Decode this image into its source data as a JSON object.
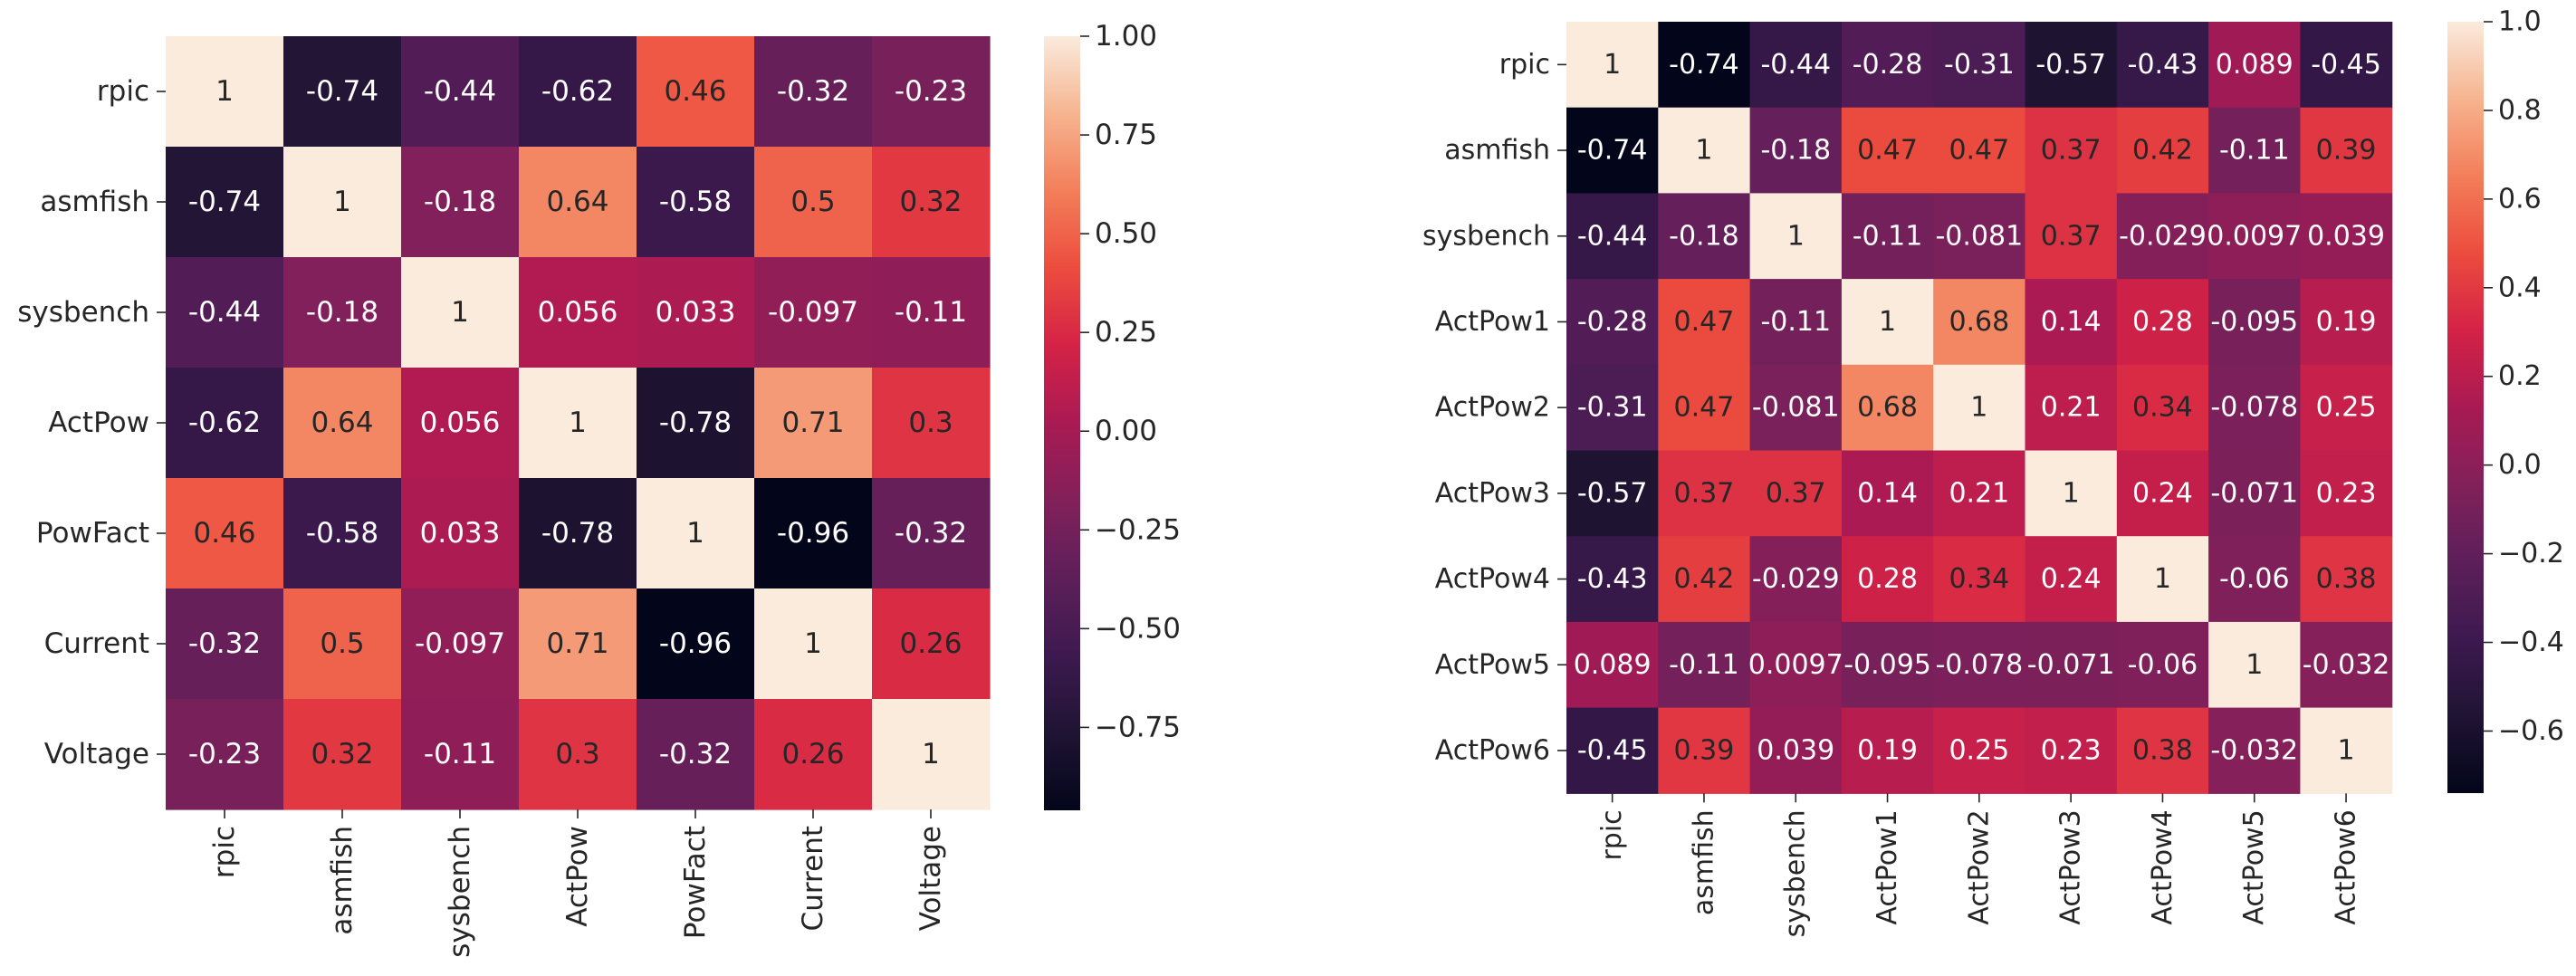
{
  "chart_data": [
    {
      "type": "heatmap",
      "labels": [
        "rpic",
        "asmfish",
        "sysbench",
        "ActPow",
        "PowFact",
        "Current",
        "Voltage"
      ],
      "values": [
        [
          1,
          -0.74,
          -0.44,
          -0.62,
          0.46,
          -0.32,
          -0.23
        ],
        [
          -0.74,
          1,
          -0.18,
          0.64,
          -0.58,
          0.5,
          0.32
        ],
        [
          -0.44,
          -0.18,
          1,
          0.056,
          0.033,
          -0.097,
          -0.11
        ],
        [
          -0.62,
          0.64,
          0.056,
          1,
          -0.78,
          0.71,
          0.3
        ],
        [
          0.46,
          -0.58,
          0.033,
          -0.78,
          1,
          -0.96,
          -0.32
        ],
        [
          -0.32,
          0.5,
          -0.097,
          0.71,
          -0.96,
          1,
          0.26
        ],
        [
          -0.23,
          0.32,
          -0.11,
          0.3,
          -0.32,
          0.26,
          1
        ]
      ],
      "annotations": [
        [
          "1",
          "-0.74",
          "-0.44",
          "-0.62",
          "0.46",
          "-0.32",
          "-0.23"
        ],
        [
          "-0.74",
          "1",
          "-0.18",
          "0.64",
          "-0.58",
          "0.5",
          "0.32"
        ],
        [
          "-0.44",
          "-0.18",
          "1",
          "0.056",
          "0.033",
          "-0.097",
          "-0.11"
        ],
        [
          "-0.62",
          "0.64",
          "0.056",
          "1",
          "-0.78",
          "0.71",
          "0.3"
        ],
        [
          "0.46",
          "-0.58",
          "0.033",
          "-0.78",
          "1",
          "-0.96",
          "-0.32"
        ],
        [
          "-0.32",
          "0.5",
          "-0.097",
          "0.71",
          "-0.96",
          "1",
          "0.26"
        ],
        [
          "-0.23",
          "0.32",
          "-0.11",
          "0.3",
          "-0.32",
          "0.26",
          "1"
        ]
      ],
      "colorbar": {
        "vmin": -0.96,
        "vmax": 1.0,
        "ticks": [
          1.0,
          0.75,
          0.5,
          0.25,
          0.0,
          -0.25,
          -0.5,
          -0.75
        ],
        "tick_labels": [
          "1.00",
          "0.75",
          "0.50",
          "0.25",
          "0.00",
          "−0.25",
          "−0.50",
          "−0.75"
        ]
      }
    },
    {
      "type": "heatmap",
      "labels": [
        "rpic",
        "asmfish",
        "sysbench",
        "ActPow1",
        "ActPow2",
        "ActPow3",
        "ActPow4",
        "ActPow5",
        "ActPow6"
      ],
      "values": [
        [
          1,
          -0.74,
          -0.44,
          -0.28,
          -0.31,
          -0.57,
          -0.43,
          0.089,
          -0.45
        ],
        [
          -0.74,
          1,
          -0.18,
          0.47,
          0.47,
          0.37,
          0.42,
          -0.11,
          0.39
        ],
        [
          -0.44,
          -0.18,
          1,
          -0.11,
          -0.081,
          0.37,
          -0.029,
          0.0097,
          0.039
        ],
        [
          -0.28,
          0.47,
          -0.11,
          1,
          0.68,
          0.14,
          0.28,
          -0.095,
          0.19
        ],
        [
          -0.31,
          0.47,
          -0.081,
          0.68,
          1,
          0.21,
          0.34,
          -0.078,
          0.25
        ],
        [
          -0.57,
          0.37,
          0.37,
          0.14,
          0.21,
          1,
          0.24,
          -0.071,
          0.23
        ],
        [
          -0.43,
          0.42,
          -0.029,
          0.28,
          0.34,
          0.24,
          1,
          -0.06,
          0.38
        ],
        [
          0.089,
          -0.11,
          0.0097,
          -0.095,
          -0.078,
          -0.071,
          -0.06,
          1,
          -0.032
        ],
        [
          -0.45,
          0.39,
          0.039,
          0.19,
          0.25,
          0.23,
          0.38,
          -0.032,
          1
        ]
      ],
      "annotations": [
        [
          "1",
          "-0.74",
          "-0.44",
          "-0.28",
          "-0.31",
          "-0.57",
          "-0.43",
          "0.089",
          "-0.45"
        ],
        [
          "-0.74",
          "1",
          "-0.18",
          "0.47",
          "0.47",
          "0.37",
          "0.42",
          "-0.11",
          "0.39"
        ],
        [
          "-0.44",
          "-0.18",
          "1",
          "-0.11",
          "-0.081",
          "0.37",
          "-0.029",
          "0.0097",
          "0.039"
        ],
        [
          "-0.28",
          "0.47",
          "-0.11",
          "1",
          "0.68",
          "0.14",
          "0.28",
          "-0.095",
          "0.19"
        ],
        [
          "-0.31",
          "0.47",
          "-0.081",
          "0.68",
          "1",
          "0.21",
          "0.34",
          "-0.078",
          "0.25"
        ],
        [
          "-0.57",
          "0.37",
          "0.37",
          "0.14",
          "0.21",
          "1",
          "0.24",
          "-0.071",
          "0.23"
        ],
        [
          "-0.43",
          "0.42",
          "-0.029",
          "0.28",
          "0.34",
          "0.24",
          "1",
          "-0.06",
          "0.38"
        ],
        [
          "0.089",
          "-0.11",
          "0.0097",
          "-0.095",
          "-0.078",
          "-0.071",
          "-0.06",
          "1",
          "-0.032"
        ],
        [
          "-0.45",
          "0.39",
          "0.039",
          "0.19",
          "0.25",
          "0.23",
          "0.38",
          "-0.032",
          "1"
        ]
      ],
      "colorbar": {
        "vmin": -0.74,
        "vmax": 1.0,
        "ticks": [
          1.0,
          0.8,
          0.6,
          0.4,
          0.2,
          0.0,
          -0.2,
          -0.4,
          -0.6
        ],
        "tick_labels": [
          "1.0",
          "0.8",
          "0.6",
          "0.4",
          "0.2",
          "0.0",
          "−0.2",
          "−0.4",
          "−0.6"
        ]
      }
    }
  ]
}
